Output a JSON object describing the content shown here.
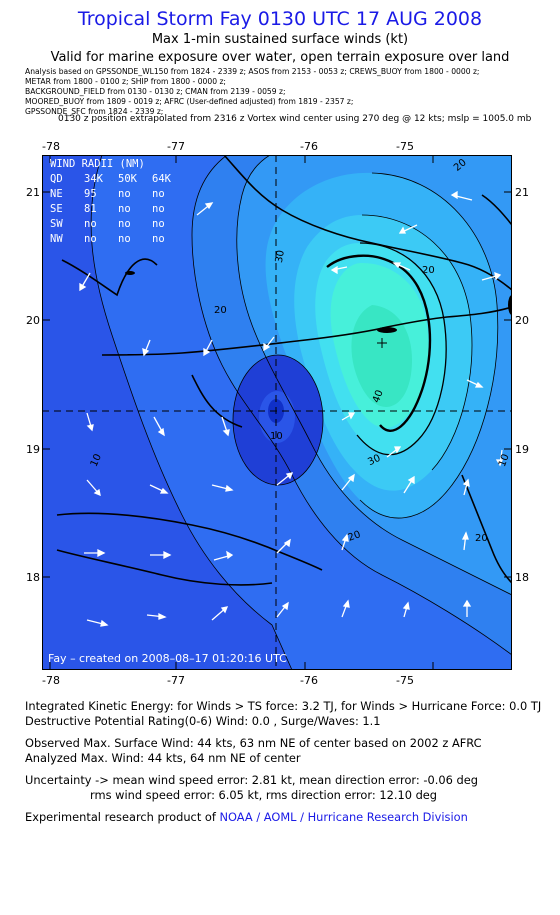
{
  "header": {
    "title": "Tropical Storm Fay 0130 UTC 17 AUG 2008",
    "subtitle1": "Max 1-min sustained surface winds (kt)",
    "subtitle2": "Valid for marine exposure over water, open terrain exposure over land"
  },
  "analysis_lines": [
    "Analysis based on  GPSSONDE_WL150 from 1824 - 2339 z;  ASOS from 2153 - 0053 z;  CREWS_BUOY from 1800 - 0000 z;",
    "METAR from 1800 - 0100 z;  SHIP from 1800 - 0000 z;",
    "BACKGROUND_FIELD from 0130 - 0130 z;  CMAN from 2139 - 0059 z;",
    "MOORED_BUOY from 1809 - 0019 z;  AFRC (User-defined adjusted) from 1819 - 2357 z;",
    "GPSSONDE_SFC from 1824 - 2339 z;"
  ],
  "position_note": "0130 z position extrapolated from 2316 z Vortex wind center using 270 deg @ 12 kts; mslp = 1005.0 mb",
  "map": {
    "lon_ticks": [
      "-78",
      "-77",
      "-76",
      "-75"
    ],
    "lat_ticks": [
      "21",
      "20",
      "19",
      "18"
    ],
    "contour_labels": [
      "40",
      "30",
      "30",
      "20",
      "20",
      "20",
      "20",
      "10",
      "10",
      "10",
      "20"
    ],
    "credit": "Fay – created on 2008–08–17 01:20:16 UTC",
    "wind_radii": {
      "title": "WIND RADII (NM)",
      "header": [
        "QD",
        "34K",
        "50K",
        "64K"
      ],
      "rows": [
        [
          "NE",
          "95",
          "no",
          "no"
        ],
        [
          "SE",
          "81",
          "no",
          "no"
        ],
        [
          "SW",
          "no",
          "no",
          "no"
        ],
        [
          "NW",
          "no",
          "no",
          "no"
        ]
      ]
    },
    "colors": {
      "outer": "#2f6df2",
      "lvl10": "#2a55e8",
      "lvl15": "#2f80f0",
      "lvl20": "#3399f5",
      "lvl25": "#35b2f7",
      "lvl30": "#3ccaf5",
      "lvl35": "#42e0f0",
      "lvl40": "#47f0da",
      "core": "#38e6c4",
      "vortex_low": "#1f3fd6",
      "vortex_center": "#1030c8",
      "land": "#000000",
      "arrow": "#ffffff"
    }
  },
  "stats": {
    "ike": "Integrated Kinetic Energy:  for Winds > TS force: 3.2 TJ,  for Winds > Hurricane Force: 0.0 TJ",
    "dpr": "Destructive Potential Rating(0-6)   Wind: 0.0 , Surge/Waves: 1.1",
    "observed": "Observed Max. Surface Wind: 44 kts, 63 nm NE of center based on 2002 z AFRC",
    "analyzed": "Analyzed Max. Wind: 44 kts, 64 nm NE of center",
    "uncert1": "Uncertainty -> mean wind speed error: 2.81 kt,   mean direction error:  -0.06 deg",
    "uncert2": "rms wind speed error: 6.05 kt,   rms direction error: 12.10 deg",
    "credit_prefix": "Experimental research product of ",
    "credit_link": "NOAA / AOML / Hurricane Research Division"
  }
}
